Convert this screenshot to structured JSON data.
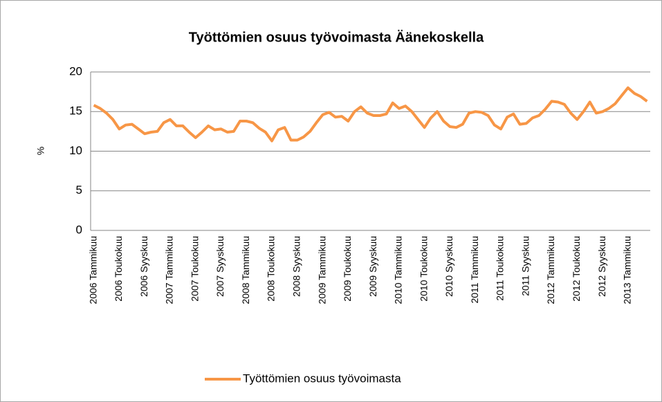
{
  "chart_data": {
    "type": "line",
    "title": "Työttömien osuus työvoimasta Äänekoskella",
    "y_label": "%",
    "categories": [
      "2006 Tammikuu",
      null,
      null,
      null,
      "2006 Toukokuu",
      null,
      null,
      null,
      "2006 Syyskuu",
      null,
      null,
      null,
      "2007 Tammikuu",
      null,
      null,
      null,
      "2007 Toukokuu",
      null,
      null,
      null,
      "2007 Syyskuu",
      null,
      null,
      null,
      "2008 Tammikuu",
      null,
      null,
      null,
      "2008 Toukokuu",
      null,
      null,
      null,
      "2008 Syyskuu",
      null,
      null,
      null,
      "2009 Tammikuu",
      null,
      null,
      null,
      "2009 Toukokuu",
      null,
      null,
      null,
      "2009 Syyskuu",
      null,
      null,
      null,
      "2010 Tammikuu",
      null,
      null,
      null,
      "2010 Toukokuu",
      null,
      null,
      null,
      "2010 Syyskuu",
      null,
      null,
      null,
      "2011 Tammikuu",
      null,
      null,
      null,
      "2011 Toukokuu",
      null,
      null,
      null,
      "2011 Syyskuu",
      null,
      null,
      null,
      "2012 Tammikuu",
      null,
      null,
      null,
      "2012 Toukokuu",
      null,
      null,
      null,
      "2012 Syyskuu",
      null,
      null,
      null,
      "2013 Tammikuu",
      null,
      null,
      null
    ],
    "series": [
      {
        "name": "Työttömien osuus työvoimasta",
        "color": "#f79646",
        "values": [
          15.8,
          15.4,
          14.8,
          14.0,
          12.8,
          13.3,
          13.4,
          12.8,
          12.2,
          12.4,
          12.5,
          13.6,
          14.0,
          13.2,
          13.2,
          12.4,
          11.7,
          12.4,
          13.2,
          12.7,
          12.8,
          12.4,
          12.5,
          13.8,
          13.8,
          13.6,
          12.9,
          12.4,
          11.3,
          12.7,
          13.0,
          11.4,
          11.4,
          11.8,
          12.5,
          13.6,
          14.6,
          14.9,
          14.3,
          14.4,
          13.8,
          15.0,
          15.6,
          14.8,
          14.5,
          14.5,
          14.7,
          16.1,
          15.4,
          15.7,
          15.0,
          14.0,
          13.0,
          14.2,
          15.0,
          13.8,
          13.1,
          13.0,
          13.4,
          14.8,
          15.0,
          14.9,
          14.5,
          13.3,
          12.8,
          14.3,
          14.7,
          13.4,
          13.5,
          14.2,
          14.5,
          15.3,
          16.3,
          16.2,
          15.9,
          14.8,
          14.0,
          15.0,
          16.2,
          14.8,
          15.0,
          15.4,
          16.0,
          17.0,
          18.0,
          17.3,
          16.9,
          16.3
        ]
      }
    ],
    "ylim": [
      0,
      20
    ],
    "yticks": [
      0,
      5,
      10,
      15,
      20
    ],
    "grid": true,
    "legend": "bottom"
  }
}
